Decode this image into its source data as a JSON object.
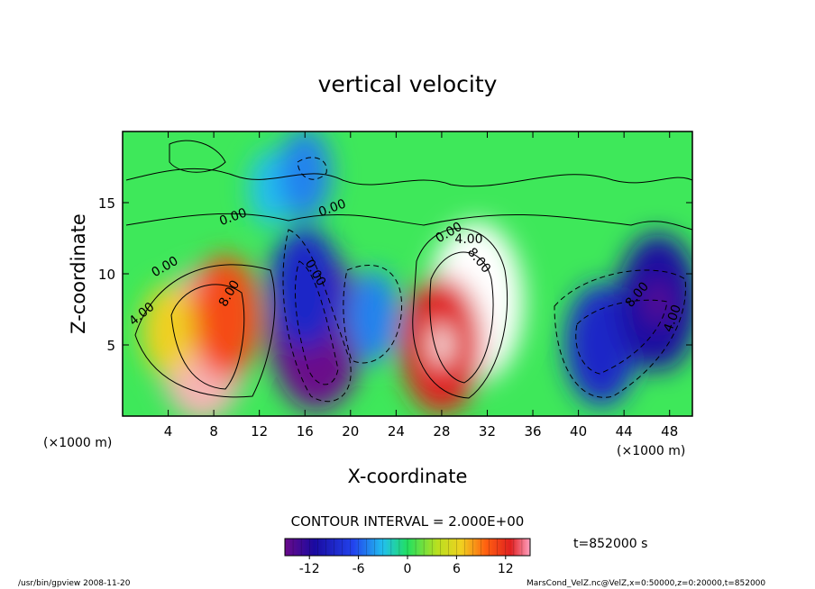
{
  "chart_data": {
    "type": "heatmap",
    "title": "vertical velocity",
    "xlabel": "X-coordinate",
    "ylabel": "Z-coordinate",
    "x_unit_left": "(×1000 m)",
    "x_unit_right": "(×1000 m)",
    "xlim": [
      0,
      50
    ],
    "ylim": [
      0,
      20
    ],
    "x_ticks": [
      4,
      8,
      12,
      16,
      20,
      24,
      28,
      32,
      36,
      40,
      44,
      48
    ],
    "y_ticks": [
      5,
      10,
      15
    ],
    "contour_interval_text": "CONTOUR INTERVAL = 2.000E+00",
    "contour_labels": [
      "4.00",
      "8.00",
      "0.00",
      "0.00",
      "0.00",
      "0.00",
      "4.00",
      "8.00",
      "0.00",
      "8.00",
      "4.00"
    ],
    "colorbar": {
      "min": -15,
      "max": 15,
      "ticks": [
        -12,
        -6,
        0,
        6,
        12
      ]
    },
    "cells": [
      {
        "x": 7,
        "z": 5,
        "value": 14
      },
      {
        "x": 9,
        "z": 7,
        "value": 10
      },
      {
        "x": 4,
        "z": 6,
        "value": 6
      },
      {
        "x": 17,
        "z": 6,
        "value": -15
      },
      {
        "x": 16,
        "z": 9,
        "value": -10
      },
      {
        "x": 22,
        "z": 7,
        "value": -6
      },
      {
        "x": 31,
        "z": 8,
        "value": 15
      },
      {
        "x": 28,
        "z": 5,
        "value": 12
      },
      {
        "x": 42,
        "z": 5,
        "value": -10
      },
      {
        "x": 47,
        "z": 8,
        "value": -12
      },
      {
        "x": 13,
        "z": 16,
        "value": -4
      },
      {
        "x": 16,
        "z": 17,
        "value": -6
      }
    ],
    "time_label": "t=852000 s",
    "footer_left": "/usr/bin/gpview  2008-11-20",
    "footer_right": "MarsCond_VelZ.nc@VelZ,x=0:50000,z=0:20000,t=852000"
  }
}
